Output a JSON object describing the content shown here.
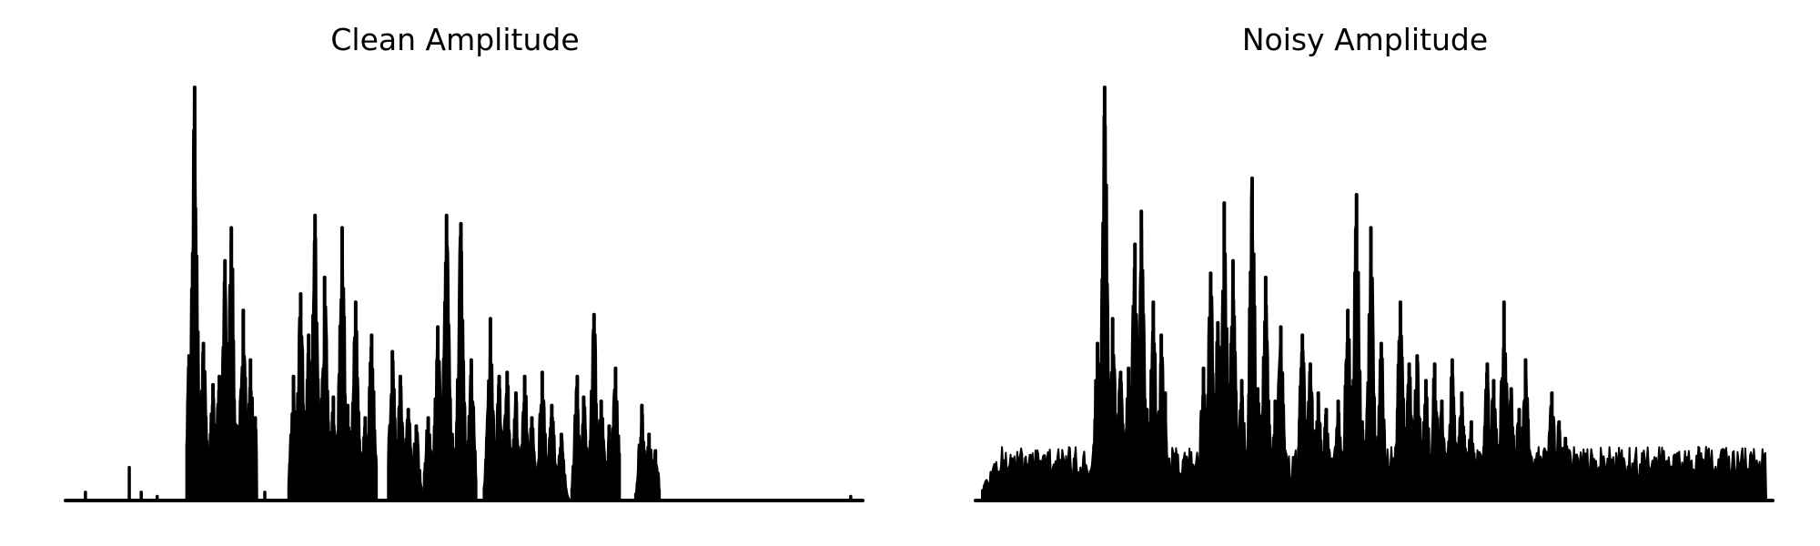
{
  "chart_data": [
    {
      "type": "area",
      "title": "Clean Amplitude",
      "xlabel": "",
      "ylabel": "",
      "axes_visible": false,
      "grid": false,
      "color": "#000000",
      "x_range": [
        0,
        100
      ],
      "ylim": [
        0,
        1.0
      ],
      "events": [
        {
          "type": "spike",
          "x": 2.5,
          "y": 0.02
        },
        {
          "type": "spike",
          "x": 8.0,
          "y": 0.08
        },
        {
          "type": "spike",
          "x": 9.5,
          "y": 0.02
        },
        {
          "type": "spike",
          "x": 11.5,
          "y": 0.01
        },
        {
          "type": "segment",
          "x": [
            15.2,
            24.0
          ],
          "peaks": [
            [
              15.5,
              0.35
            ],
            [
              16.2,
              1.0
            ],
            [
              17.3,
              0.38
            ],
            [
              18.5,
              0.28
            ],
            [
              19.3,
              0.3
            ],
            [
              20.0,
              0.58
            ],
            [
              20.8,
              0.66
            ],
            [
              21.5,
              0.18
            ],
            [
              22.3,
              0.46
            ],
            [
              23.2,
              0.34
            ],
            [
              23.8,
              0.2
            ]
          ]
        },
        {
          "type": "spike",
          "x": 25.0,
          "y": 0.02
        },
        {
          "type": "segment",
          "x": [
            28.0,
            39.0
          ],
          "peaks": [
            [
              28.6,
              0.3
            ],
            [
              29.5,
              0.5
            ],
            [
              30.5,
              0.4
            ],
            [
              31.3,
              0.69
            ],
            [
              32.5,
              0.54
            ],
            [
              33.6,
              0.25
            ],
            [
              34.7,
              0.66
            ],
            [
              35.4,
              0.23
            ],
            [
              36.4,
              0.48
            ],
            [
              37.6,
              0.2
            ],
            [
              38.4,
              0.4
            ]
          ]
        },
        {
          "type": "segment",
          "x": [
            40.5,
            44.8
          ],
          "peaks": [
            [
              41.0,
              0.36
            ],
            [
              42.0,
              0.3
            ],
            [
              43.0,
              0.22
            ],
            [
              44.0,
              0.18
            ]
          ]
        },
        {
          "type": "segment",
          "x": [
            45.0,
            51.5
          ],
          "peaks": [
            [
              45.5,
              0.2
            ],
            [
              46.7,
              0.42
            ],
            [
              47.8,
              0.69
            ],
            [
              48.5,
              0.16
            ],
            [
              49.6,
              0.67
            ],
            [
              50.9,
              0.34
            ]
          ]
        },
        {
          "type": "segment",
          "x": [
            52.5,
            63.5
          ],
          "peaks": [
            [
              53.3,
              0.44
            ],
            [
              54.4,
              0.3
            ],
            [
              55.4,
              0.31
            ],
            [
              56.5,
              0.26
            ],
            [
              57.6,
              0.3
            ],
            [
              58.5,
              0.2
            ],
            [
              59.8,
              0.31
            ],
            [
              61.0,
              0.23
            ],
            [
              62.2,
              0.16
            ]
          ]
        },
        {
          "type": "segment",
          "x": [
            63.5,
            69.5
          ],
          "peaks": [
            [
              64.2,
              0.3
            ],
            [
              65.0,
              0.25
            ],
            [
              66.3,
              0.45
            ],
            [
              67.2,
              0.24
            ],
            [
              68.2,
              0.18
            ],
            [
              69.0,
              0.32
            ]
          ]
        },
        {
          "type": "segment",
          "x": [
            71.5,
            74.5
          ],
          "peaks": [
            [
              72.3,
              0.23
            ],
            [
              73.2,
              0.16
            ],
            [
              74.0,
              0.12
            ]
          ]
        },
        {
          "type": "spike",
          "x": 98.5,
          "y": 0.01
        }
      ],
      "baseline": 0.005
    },
    {
      "type": "area",
      "title": "Noisy Amplitude",
      "xlabel": "",
      "ylabel": "",
      "axes_visible": false,
      "grid": false,
      "color": "#000000",
      "x_range": [
        0,
        100
      ],
      "ylim": [
        0,
        1.0
      ],
      "events": [
        {
          "type": "segment",
          "x": [
            14.8,
            24.0
          ],
          "peaks": [
            [
              15.3,
              0.38
            ],
            [
              16.2,
              1.0
            ],
            [
              17.2,
              0.44
            ],
            [
              18.2,
              0.31
            ],
            [
              19.2,
              0.32
            ],
            [
              20.0,
              0.62
            ],
            [
              20.8,
              0.7
            ],
            [
              21.5,
              0.22
            ],
            [
              22.3,
              0.48
            ],
            [
              23.3,
              0.4
            ],
            [
              23.8,
              0.26
            ]
          ]
        },
        {
          "type": "segment",
          "x": [
            28.0,
            39.0
          ],
          "peaks": [
            [
              28.6,
              0.32
            ],
            [
              29.5,
              0.55
            ],
            [
              30.4,
              0.43
            ],
            [
              31.2,
              0.72
            ],
            [
              32.3,
              0.58
            ],
            [
              33.4,
              0.29
            ],
            [
              34.7,
              0.78
            ],
            [
              35.4,
              0.27
            ],
            [
              36.4,
              0.54
            ],
            [
              37.6,
              0.24
            ],
            [
              38.3,
              0.42
            ]
          ]
        },
        {
          "type": "segment",
          "x": [
            40.5,
            44.8
          ],
          "peaks": [
            [
              41.0,
              0.4
            ],
            [
              42.0,
              0.33
            ],
            [
              43.0,
              0.26
            ],
            [
              44.0,
              0.22
            ]
          ]
        },
        {
          "type": "segment",
          "x": [
            45.0,
            51.5
          ],
          "peaks": [
            [
              45.5,
              0.24
            ],
            [
              46.7,
              0.46
            ],
            [
              47.8,
              0.74
            ],
            [
              48.5,
              0.19
            ],
            [
              49.6,
              0.66
            ],
            [
              50.9,
              0.38
            ]
          ]
        },
        {
          "type": "segment",
          "x": [
            52.5,
            63.5
          ],
          "peaks": [
            [
              53.3,
              0.48
            ],
            [
              54.4,
              0.33
            ],
            [
              55.4,
              0.35
            ],
            [
              56.5,
              0.29
            ],
            [
              57.6,
              0.33
            ],
            [
              58.5,
              0.24
            ],
            [
              59.8,
              0.34
            ],
            [
              61.0,
              0.26
            ],
            [
              62.2,
              0.19
            ]
          ]
        },
        {
          "type": "segment",
          "x": [
            63.5,
            69.5
          ],
          "peaks": [
            [
              64.2,
              0.33
            ],
            [
              65.0,
              0.29
            ],
            [
              66.3,
              0.48
            ],
            [
              67.2,
              0.27
            ],
            [
              68.2,
              0.22
            ],
            [
              69.0,
              0.34
            ]
          ]
        },
        {
          "type": "segment",
          "x": [
            71.5,
            74.5
          ],
          "peaks": [
            [
              72.3,
              0.26
            ],
            [
              73.2,
              0.19
            ],
            [
              74.0,
              0.15
            ]
          ]
        }
      ],
      "noise_floor": 0.09,
      "noise_amplitude": 0.04
    }
  ]
}
